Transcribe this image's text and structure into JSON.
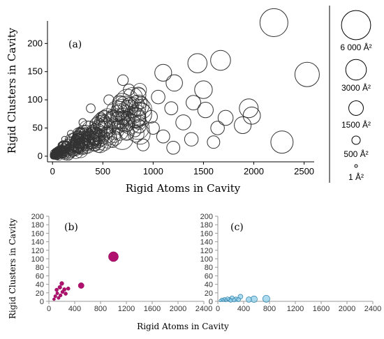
{
  "chart_data": [
    {
      "type": "scatter",
      "panel_label": "(a)",
      "xlabel": "Rigid Atoms in Cavity",
      "ylabel": "Rigid Clusters in Cavity",
      "xlim": [
        -50,
        2600
      ],
      "ylim": [
        -10,
        240
      ],
      "xticks": [
        "0",
        "500",
        "1000",
        "1500",
        "2000",
        "2500"
      ],
      "yticks": [
        "0",
        "50",
        "100",
        "150",
        "200"
      ],
      "marker": "open-circle",
      "size_encoding": "cavity area (Å²)",
      "points": [
        {
          "x": 2200,
          "y": 237,
          "area": 5500
        },
        {
          "x": 2530,
          "y": 145,
          "area": 4200
        },
        {
          "x": 1670,
          "y": 170,
          "area": 2800
        },
        {
          "x": 1440,
          "y": 165,
          "area": 2600
        },
        {
          "x": 1100,
          "y": 148,
          "area": 2000
        },
        {
          "x": 1210,
          "y": 130,
          "area": 1900
        },
        {
          "x": 1500,
          "y": 118,
          "area": 2200
        },
        {
          "x": 1950,
          "y": 85,
          "area": 2500
        },
        {
          "x": 2280,
          "y": 25,
          "area": 3500
        },
        {
          "x": 1980,
          "y": 72,
          "area": 2100
        },
        {
          "x": 1890,
          "y": 55,
          "area": 2000
        },
        {
          "x": 1720,
          "y": 68,
          "area": 1600
        },
        {
          "x": 1640,
          "y": 50,
          "area": 1300
        },
        {
          "x": 1520,
          "y": 82,
          "area": 1700
        },
        {
          "x": 1400,
          "y": 95,
          "area": 1500
        },
        {
          "x": 1300,
          "y": 60,
          "area": 1600
        },
        {
          "x": 1180,
          "y": 85,
          "area": 1200
        },
        {
          "x": 1050,
          "y": 105,
          "area": 1300
        },
        {
          "x": 980,
          "y": 70,
          "area": 1100
        },
        {
          "x": 880,
          "y": 95,
          "area": 1000
        },
        {
          "x": 760,
          "y": 118,
          "area": 900
        },
        {
          "x": 700,
          "y": 135,
          "area": 800
        },
        {
          "x": 650,
          "y": 80,
          "area": 900
        },
        {
          "x": 820,
          "y": 45,
          "area": 1000
        },
        {
          "x": 1100,
          "y": 35,
          "area": 1200
        },
        {
          "x": 1380,
          "y": 30,
          "area": 1300
        },
        {
          "x": 1600,
          "y": 25,
          "area": 1100
        },
        {
          "x": 560,
          "y": 100,
          "area": 700
        },
        {
          "x": 480,
          "y": 70,
          "area": 600
        },
        {
          "x": 420,
          "y": 50,
          "area": 500
        },
        {
          "x": 350,
          "y": 38,
          "area": 450
        },
        {
          "x": 300,
          "y": 60,
          "area": 400
        },
        {
          "x": 250,
          "y": 30,
          "area": 350
        },
        {
          "x": 200,
          "y": 22,
          "area": 300
        },
        {
          "x": 150,
          "y": 15,
          "area": 250
        },
        {
          "x": 100,
          "y": 10,
          "area": 200
        },
        {
          "x": 60,
          "y": 5,
          "area": 150
        },
        {
          "x": 30,
          "y": 2,
          "area": 100
        },
        {
          "x": 600,
          "y": 25,
          "area": 800
        },
        {
          "x": 700,
          "y": 55,
          "area": 900
        },
        {
          "x": 900,
          "y": 20,
          "area": 1000
        },
        {
          "x": 1000,
          "y": 50,
          "area": 1100
        },
        {
          "x": 1200,
          "y": 15,
          "area": 1200
        },
        {
          "x": 520,
          "y": 35,
          "area": 650
        },
        {
          "x": 380,
          "y": 85,
          "area": 550
        },
        {
          "x": 280,
          "y": 45,
          "area": 400
        },
        {
          "x": 180,
          "y": 40,
          "area": 300
        },
        {
          "x": 120,
          "y": 30,
          "area": 250
        },
        {
          "x": 80,
          "y": 20,
          "area": 180
        },
        {
          "x": 40,
          "y": 12,
          "area": 120
        }
      ]
    },
    {
      "type": "scatter",
      "panel_label": "(b)",
      "xlabel": "Rigid Atoms in Cavity",
      "ylabel": "Rigid Clusters in Cavity",
      "xlim": [
        0,
        2400
      ],
      "ylim": [
        0,
        200
      ],
      "xticks": [
        "0",
        "400",
        "800",
        "1200",
        "1600",
        "2000",
        "2400"
      ],
      "yticks": [
        "0",
        "20",
        "40",
        "60",
        "80",
        "100",
        "120",
        "140",
        "160",
        "180",
        "200"
      ],
      "marker_color": "#b0106e",
      "points": [
        {
          "x": 1000,
          "y": 105,
          "area": 3500
        },
        {
          "x": 500,
          "y": 37,
          "area": 1200
        },
        {
          "x": 200,
          "y": 42,
          "area": 600
        },
        {
          "x": 170,
          "y": 33,
          "area": 550
        },
        {
          "x": 240,
          "y": 28,
          "area": 500
        },
        {
          "x": 120,
          "y": 27,
          "area": 450
        },
        {
          "x": 260,
          "y": 18,
          "area": 450
        },
        {
          "x": 180,
          "y": 14,
          "area": 400
        },
        {
          "x": 100,
          "y": 12,
          "area": 380
        },
        {
          "x": 150,
          "y": 8,
          "area": 350
        },
        {
          "x": 80,
          "y": 5,
          "area": 300
        },
        {
          "x": 210,
          "y": 22,
          "area": 400
        },
        {
          "x": 300,
          "y": 30,
          "area": 450
        },
        {
          "x": 130,
          "y": 19,
          "area": 350
        }
      ]
    },
    {
      "type": "scatter",
      "panel_label": "(c)",
      "xlabel": "Rigid Atoms in Cavity",
      "ylabel": "Rigid Clusters in Cavity",
      "xlim": [
        0,
        2400
      ],
      "ylim": [
        0,
        200
      ],
      "xticks": [
        "0",
        "400",
        "800",
        "1200",
        "1600",
        "2000",
        "2400"
      ],
      "yticks": [
        "0",
        "20",
        "40",
        "60",
        "80",
        "100",
        "120",
        "140",
        "160",
        "180",
        "200"
      ],
      "marker_color": "#8fcfea",
      "marker_edge": "#2f7fa8",
      "points": [
        {
          "x": 750,
          "y": 6,
          "area": 1500
        },
        {
          "x": 560,
          "y": 5,
          "area": 1300
        },
        {
          "x": 480,
          "y": 4,
          "area": 900
        },
        {
          "x": 350,
          "y": 11,
          "area": 700
        },
        {
          "x": 280,
          "y": 5,
          "area": 600
        },
        {
          "x": 220,
          "y": 8,
          "area": 550
        },
        {
          "x": 180,
          "y": 4,
          "area": 500
        },
        {
          "x": 150,
          "y": 6,
          "area": 450
        },
        {
          "x": 120,
          "y": 3,
          "area": 400
        },
        {
          "x": 100,
          "y": 5,
          "area": 350
        },
        {
          "x": 80,
          "y": 3,
          "area": 300
        },
        {
          "x": 60,
          "y": 4,
          "area": 250
        },
        {
          "x": 40,
          "y": 2,
          "area": 200
        },
        {
          "x": 250,
          "y": 3,
          "area": 450
        },
        {
          "x": 320,
          "y": 4,
          "area": 500
        },
        {
          "x": 200,
          "y": 2,
          "area": 400
        }
      ]
    }
  ],
  "legend": {
    "title": "",
    "entries": [
      {
        "label": "6 000 Å²",
        "area": 6000
      },
      {
        "label": "3000 Å²",
        "area": 3000
      },
      {
        "label": "1500 Å²",
        "area": 1500
      },
      {
        "label": "500 Å²",
        "area": 500
      },
      {
        "label": "1 Å²",
        "area": 1
      }
    ]
  }
}
